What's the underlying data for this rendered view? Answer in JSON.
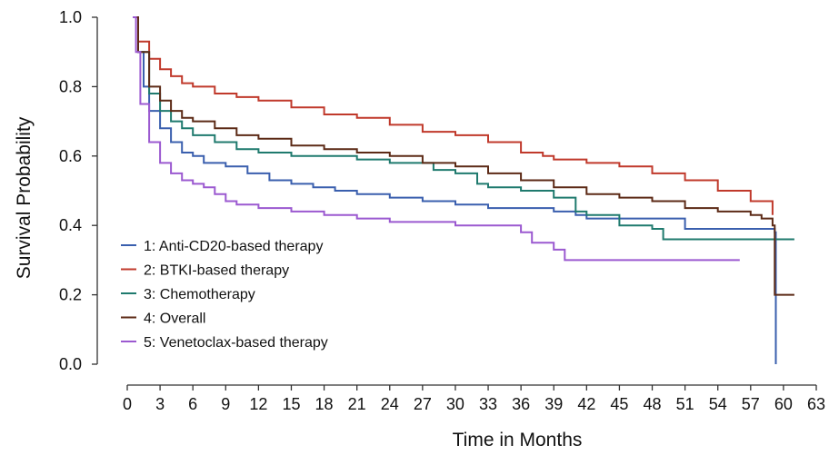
{
  "chart_data": {
    "type": "line",
    "xlabel": "Time in Months",
    "ylabel": "Survival Probability",
    "xlim": [
      0,
      63
    ],
    "ylim": [
      0,
      1
    ],
    "x_ticks": [
      0,
      3,
      6,
      9,
      12,
      15,
      18,
      21,
      24,
      27,
      30,
      33,
      36,
      39,
      42,
      45,
      48,
      51,
      54,
      57,
      60,
      63
    ],
    "y_ticks": [
      "0.0",
      "0.2",
      "0.4",
      "0.6",
      "0.8",
      "1.0"
    ],
    "grid": false,
    "legend_position": "bottom-left",
    "series": [
      {
        "name": "1: Anti-CD20-based therapy",
        "color": "#3a5fae",
        "points": [
          [
            0.5,
            1.0
          ],
          [
            1,
            0.9
          ],
          [
            1.5,
            0.8
          ],
          [
            2,
            0.73
          ],
          [
            3,
            0.68
          ],
          [
            4,
            0.64
          ],
          [
            5,
            0.61
          ],
          [
            6,
            0.6
          ],
          [
            7,
            0.58
          ],
          [
            9,
            0.57
          ],
          [
            11,
            0.55
          ],
          [
            13,
            0.53
          ],
          [
            15,
            0.52
          ],
          [
            17,
            0.51
          ],
          [
            19,
            0.5
          ],
          [
            21,
            0.49
          ],
          [
            24,
            0.48
          ],
          [
            27,
            0.47
          ],
          [
            30,
            0.46
          ],
          [
            33,
            0.45
          ],
          [
            36,
            0.45
          ],
          [
            39,
            0.44
          ],
          [
            41,
            0.43
          ],
          [
            42,
            0.42
          ],
          [
            45,
            0.42
          ],
          [
            48,
            0.42
          ],
          [
            50,
            0.42
          ],
          [
            51,
            0.39
          ],
          [
            54,
            0.39
          ],
          [
            57,
            0.39
          ],
          [
            59.2,
            0.38
          ],
          [
            59.3,
            0.0
          ]
        ]
      },
      {
        "name": "2: BTKI-based therapy",
        "color": "#c0392b",
        "points": [
          [
            0.5,
            1.0
          ],
          [
            1,
            0.93
          ],
          [
            2,
            0.88
          ],
          [
            3,
            0.85
          ],
          [
            4,
            0.83
          ],
          [
            5,
            0.81
          ],
          [
            6,
            0.8
          ],
          [
            8,
            0.78
          ],
          [
            10,
            0.77
          ],
          [
            12,
            0.76
          ],
          [
            15,
            0.74
          ],
          [
            18,
            0.72
          ],
          [
            21,
            0.71
          ],
          [
            24,
            0.69
          ],
          [
            27,
            0.67
          ],
          [
            30,
            0.66
          ],
          [
            33,
            0.64
          ],
          [
            36,
            0.61
          ],
          [
            38,
            0.6
          ],
          [
            39,
            0.59
          ],
          [
            42,
            0.58
          ],
          [
            45,
            0.57
          ],
          [
            48,
            0.55
          ],
          [
            51,
            0.53
          ],
          [
            53,
            0.53
          ],
          [
            54,
            0.5
          ],
          [
            56,
            0.5
          ],
          [
            57,
            0.47
          ],
          [
            59,
            0.43
          ]
        ]
      },
      {
        "name": "3: Chemotherapy",
        "color": "#1f7a6e",
        "points": [
          [
            0.5,
            1.0
          ],
          [
            1,
            0.9
          ],
          [
            2,
            0.78
          ],
          [
            3,
            0.73
          ],
          [
            4,
            0.7
          ],
          [
            5,
            0.68
          ],
          [
            6,
            0.66
          ],
          [
            8,
            0.64
          ],
          [
            10,
            0.62
          ],
          [
            12,
            0.61
          ],
          [
            15,
            0.6
          ],
          [
            18,
            0.6
          ],
          [
            21,
            0.59
          ],
          [
            24,
            0.58
          ],
          [
            27,
            0.58
          ],
          [
            28,
            0.56
          ],
          [
            30,
            0.55
          ],
          [
            32,
            0.52
          ],
          [
            33,
            0.51
          ],
          [
            36,
            0.5
          ],
          [
            39,
            0.48
          ],
          [
            40.5,
            0.48
          ],
          [
            41,
            0.44
          ],
          [
            42,
            0.43
          ],
          [
            45,
            0.4
          ],
          [
            48,
            0.39
          ],
          [
            49,
            0.36
          ],
          [
            52,
            0.36
          ],
          [
            55,
            0.36
          ],
          [
            57,
            0.36
          ],
          [
            59,
            0.36
          ],
          [
            61,
            0.36
          ]
        ]
      },
      {
        "name": "4: Overall",
        "color": "#5c2a16",
        "points": [
          [
            0.5,
            1.0
          ],
          [
            1,
            0.9
          ],
          [
            2,
            0.8
          ],
          [
            3,
            0.76
          ],
          [
            4,
            0.73
          ],
          [
            5,
            0.71
          ],
          [
            6,
            0.7
          ],
          [
            8,
            0.68
          ],
          [
            10,
            0.66
          ],
          [
            12,
            0.65
          ],
          [
            15,
            0.63
          ],
          [
            18,
            0.62
          ],
          [
            21,
            0.61
          ],
          [
            24,
            0.6
          ],
          [
            27,
            0.58
          ],
          [
            30,
            0.57
          ],
          [
            33,
            0.55
          ],
          [
            36,
            0.53
          ],
          [
            39,
            0.51
          ],
          [
            42,
            0.49
          ],
          [
            45,
            0.48
          ],
          [
            48,
            0.47
          ],
          [
            51,
            0.45
          ],
          [
            54,
            0.44
          ],
          [
            57,
            0.43
          ],
          [
            58,
            0.42
          ],
          [
            59,
            0.4
          ],
          [
            59.2,
            0.2
          ],
          [
            61,
            0.2
          ]
        ]
      },
      {
        "name": "5: Venetoclax-based therapy",
        "color": "#9b59d0",
        "points": [
          [
            0.5,
            1.0
          ],
          [
            0.8,
            0.9
          ],
          [
            1.2,
            0.75
          ],
          [
            2,
            0.64
          ],
          [
            3,
            0.58
          ],
          [
            4,
            0.55
          ],
          [
            5,
            0.53
          ],
          [
            6,
            0.52
          ],
          [
            7,
            0.51
          ],
          [
            8,
            0.49
          ],
          [
            9,
            0.47
          ],
          [
            10,
            0.46
          ],
          [
            12,
            0.45
          ],
          [
            15,
            0.44
          ],
          [
            18,
            0.43
          ],
          [
            21,
            0.42
          ],
          [
            24,
            0.41
          ],
          [
            27,
            0.41
          ],
          [
            30,
            0.4
          ],
          [
            33,
            0.4
          ],
          [
            35,
            0.4
          ],
          [
            36,
            0.38
          ],
          [
            37,
            0.35
          ],
          [
            39,
            0.33
          ],
          [
            40,
            0.3
          ],
          [
            42,
            0.3
          ],
          [
            45,
            0.3
          ],
          [
            48,
            0.3
          ],
          [
            51,
            0.3
          ],
          [
            54,
            0.3
          ],
          [
            56,
            0.3
          ]
        ]
      }
    ]
  }
}
